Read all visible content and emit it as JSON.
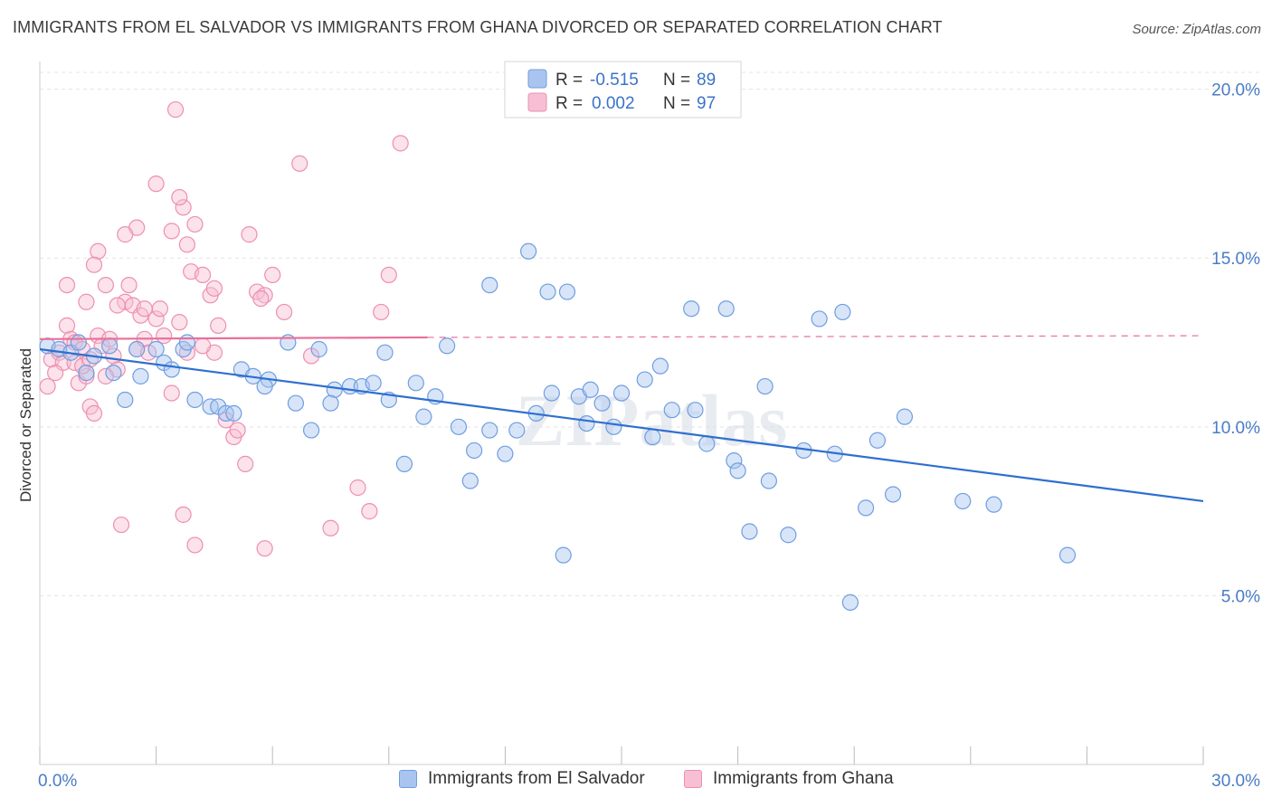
{
  "title": "IMMIGRANTS FROM EL SALVADOR VS IMMIGRANTS FROM GHANA DIVORCED OR SEPARATED CORRELATION CHART",
  "source": "Source: ZipAtlas.com",
  "watermark": "ZIPatlas",
  "colors": {
    "blue": "#6f9ee0",
    "blue_fill": "#a9c5ef",
    "blue_line": "#2f6fcf",
    "pink": "#ee8fb0",
    "pink_fill": "#f7bfd3",
    "pink_line": "#e8709a",
    "accent_text": "#4a7cc6"
  },
  "legend": {
    "rows": [
      {
        "r_label": "R =",
        "r_value": "-0.515",
        "n_label": "N =",
        "n_value": "89"
      },
      {
        "r_label": "R =",
        "r_value": "0.002",
        "n_label": "N =",
        "n_value": "97"
      }
    ]
  },
  "bottom_legend": {
    "series1": "Immigrants from El Salvador",
    "series2": "Immigrants from Ghana"
  },
  "chart_data": {
    "type": "scatter",
    "title": "IMMIGRANTS FROM EL SALVADOR VS IMMIGRANTS FROM GHANA DIVORCED OR SEPARATED CORRELATION CHART",
    "xlabel": "",
    "ylabel": "Divorced or Separated",
    "xlim": [
      0,
      30
    ],
    "ylim": [
      0,
      20.5
    ],
    "x_tick_labels": [
      "0.0%",
      "30.0%"
    ],
    "y_ticks": [
      5,
      10,
      15,
      20
    ],
    "y_tick_labels": [
      "5.0%",
      "10.0%",
      "15.0%",
      "20.0%"
    ],
    "grid": true,
    "legend_placement": "top-center",
    "series": [
      {
        "name": "Immigrants from El Salvador",
        "trend": {
          "x": [
            0,
            30
          ],
          "y": [
            12.3,
            7.8
          ]
        },
        "points": [
          [
            0.2,
            12.4
          ],
          [
            0.5,
            12.3
          ],
          [
            0.8,
            12.2
          ],
          [
            1.0,
            12.5
          ],
          [
            1.2,
            11.6
          ],
          [
            1.4,
            12.1
          ],
          [
            1.8,
            12.4
          ],
          [
            2.2,
            10.8
          ],
          [
            2.5,
            12.3
          ],
          [
            2.6,
            11.5
          ],
          [
            1.9,
            11.6
          ],
          [
            3.0,
            12.3
          ],
          [
            3.2,
            11.9
          ],
          [
            3.4,
            11.7
          ],
          [
            3.7,
            12.3
          ],
          [
            3.8,
            12.5
          ],
          [
            4.0,
            10.8
          ],
          [
            4.4,
            10.6
          ],
          [
            4.6,
            10.6
          ],
          [
            4.8,
            10.4
          ],
          [
            5.0,
            10.4
          ],
          [
            5.2,
            11.7
          ],
          [
            5.5,
            11.5
          ],
          [
            5.9,
            11.4
          ],
          [
            5.8,
            11.2
          ],
          [
            6.4,
            12.5
          ],
          [
            6.6,
            10.7
          ],
          [
            7.0,
            9.9
          ],
          [
            7.2,
            12.3
          ],
          [
            7.6,
            11.1
          ],
          [
            7.5,
            10.7
          ],
          [
            8.0,
            11.2
          ],
          [
            8.3,
            11.2
          ],
          [
            8.6,
            11.3
          ],
          [
            8.9,
            12.2
          ],
          [
            9.0,
            10.8
          ],
          [
            9.4,
            8.9
          ],
          [
            9.7,
            11.3
          ],
          [
            9.9,
            10.3
          ],
          [
            10.2,
            10.9
          ],
          [
            10.5,
            12.4
          ],
          [
            10.8,
            10.0
          ],
          [
            11.2,
            9.3
          ],
          [
            11.1,
            8.4
          ],
          [
            11.6,
            9.9
          ],
          [
            12.0,
            9.2
          ],
          [
            12.3,
            9.9
          ],
          [
            12.6,
            15.2
          ],
          [
            11.6,
            14.2
          ],
          [
            12.8,
            10.4
          ],
          [
            13.1,
            14.0
          ],
          [
            13.2,
            11.0
          ],
          [
            13.6,
            14.0
          ],
          [
            13.5,
            6.2
          ],
          [
            13.9,
            10.9
          ],
          [
            14.2,
            11.1
          ],
          [
            14.1,
            10.1
          ],
          [
            14.5,
            10.7
          ],
          [
            14.8,
            10.0
          ],
          [
            15.0,
            11.0
          ],
          [
            15.6,
            11.4
          ],
          [
            15.8,
            9.7
          ],
          [
            16.0,
            11.8
          ],
          [
            16.3,
            10.5
          ],
          [
            16.8,
            13.5
          ],
          [
            16.9,
            10.5
          ],
          [
            17.2,
            9.5
          ],
          [
            17.7,
            13.5
          ],
          [
            17.9,
            9.0
          ],
          [
            18.0,
            8.7
          ],
          [
            18.3,
            6.9
          ],
          [
            18.7,
            11.2
          ],
          [
            18.8,
            8.4
          ],
          [
            19.3,
            6.8
          ],
          [
            19.7,
            9.3
          ],
          [
            20.1,
            13.2
          ],
          [
            20.5,
            9.2
          ],
          [
            20.7,
            13.4
          ],
          [
            20.9,
            4.8
          ],
          [
            21.3,
            7.6
          ],
          [
            21.6,
            9.6
          ],
          [
            22.0,
            8.0
          ],
          [
            22.3,
            10.3
          ],
          [
            23.8,
            7.8
          ],
          [
            24.6,
            7.7
          ],
          [
            26.5,
            6.2
          ]
        ]
      },
      {
        "name": "Immigrants from Ghana",
        "trend": {
          "x": [
            0,
            10.0
          ],
          "y": [
            12.6,
            12.65
          ]
        },
        "trend_dashed": {
          "x": [
            10.0,
            30
          ],
          "y": [
            12.65,
            12.7
          ]
        },
        "points": [
          [
            0.2,
            11.2
          ],
          [
            0.3,
            12.0
          ],
          [
            0.5,
            12.2
          ],
          [
            0.6,
            11.9
          ],
          [
            0.7,
            13.0
          ],
          [
            0.8,
            12.6
          ],
          [
            0.9,
            12.5
          ],
          [
            1.0,
            11.3
          ],
          [
            1.1,
            12.3
          ],
          [
            1.2,
            11.5
          ],
          [
            1.3,
            10.6
          ],
          [
            1.4,
            10.4
          ],
          [
            1.5,
            12.7
          ],
          [
            1.6,
            12.4
          ],
          [
            1.8,
            12.6
          ],
          [
            1.9,
            12.1
          ],
          [
            2.0,
            11.7
          ],
          [
            2.2,
            13.7
          ],
          [
            2.4,
            13.6
          ],
          [
            2.5,
            12.3
          ],
          [
            2.6,
            13.3
          ],
          [
            2.7,
            12.6
          ],
          [
            2.8,
            12.2
          ],
          [
            3.0,
            13.2
          ],
          [
            3.2,
            12.7
          ],
          [
            3.4,
            11.0
          ],
          [
            3.6,
            13.1
          ],
          [
            3.8,
            12.2
          ],
          [
            3.9,
            14.6
          ],
          [
            4.0,
            16.0
          ],
          [
            4.2,
            14.5
          ],
          [
            4.4,
            13.9
          ],
          [
            4.5,
            12.2
          ],
          [
            4.6,
            13.0
          ],
          [
            4.8,
            10.2
          ],
          [
            5.0,
            9.7
          ],
          [
            5.1,
            9.9
          ],
          [
            5.3,
            8.9
          ],
          [
            5.4,
            15.7
          ],
          [
            5.6,
            14.0
          ],
          [
            5.8,
            13.9
          ],
          [
            6.0,
            14.5
          ],
          [
            6.3,
            13.4
          ],
          [
            6.7,
            17.8
          ],
          [
            7.0,
            12.1
          ],
          [
            7.5,
            7.0
          ],
          [
            8.2,
            8.2
          ],
          [
            8.5,
            7.5
          ],
          [
            8.8,
            13.4
          ],
          [
            9.0,
            14.5
          ],
          [
            9.3,
            18.4
          ],
          [
            3.5,
            19.4
          ],
          [
            3.0,
            17.2
          ],
          [
            3.7,
            16.5
          ],
          [
            3.6,
            16.8
          ],
          [
            2.5,
            15.9
          ],
          [
            2.2,
            15.7
          ],
          [
            3.4,
            15.8
          ],
          [
            3.8,
            15.4
          ],
          [
            1.5,
            15.2
          ],
          [
            1.4,
            14.8
          ],
          [
            0.7,
            14.2
          ],
          [
            1.7,
            14.2
          ],
          [
            2.3,
            14.2
          ],
          [
            1.2,
            13.7
          ],
          [
            2.0,
            13.6
          ],
          [
            2.7,
            13.5
          ],
          [
            4.5,
            14.1
          ],
          [
            5.7,
            13.8
          ],
          [
            3.7,
            7.4
          ],
          [
            2.1,
            7.1
          ],
          [
            4.0,
            6.5
          ],
          [
            5.8,
            6.4
          ],
          [
            3.1,
            13.5
          ],
          [
            4.2,
            12.4
          ],
          [
            0.4,
            11.6
          ],
          [
            0.9,
            11.9
          ],
          [
            1.1,
            11.8
          ],
          [
            1.3,
            12.0
          ],
          [
            1.7,
            11.5
          ]
        ]
      }
    ]
  }
}
